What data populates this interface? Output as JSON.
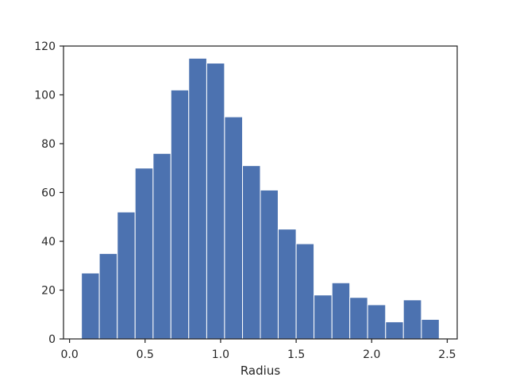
{
  "chart_data": {
    "type": "bar",
    "subtype": "histogram",
    "title": "",
    "xlabel": "Radius",
    "ylabel": "",
    "bin_edges": [
      0.079,
      0.197,
      0.316,
      0.434,
      0.553,
      0.671,
      0.789,
      0.908,
      1.026,
      1.145,
      1.263,
      1.381,
      1.5,
      1.618,
      1.737,
      1.855,
      1.973,
      2.092,
      2.21,
      2.329,
      2.447
    ],
    "values": [
      27,
      35,
      52,
      70,
      76,
      102,
      115,
      113,
      91,
      71,
      61,
      45,
      39,
      18,
      23,
      17,
      14,
      7,
      16,
      8
    ],
    "xlim": [
      -0.04,
      2.566
    ],
    "ylim": [
      0,
      120
    ],
    "xticks": [
      0.0,
      0.5,
      1.0,
      1.5,
      2.0,
      2.5
    ],
    "xtick_labels": [
      "0.0",
      "0.5",
      "1.0",
      "1.5",
      "2.0",
      "2.5"
    ],
    "yticks": [
      0,
      20,
      40,
      60,
      80,
      100,
      120
    ],
    "ytick_labels": [
      "0",
      "20",
      "40",
      "60",
      "80",
      "100",
      "120"
    ],
    "grid": false,
    "legend": "none",
    "bar_color": "#4c72b0",
    "bar_edge_color": "#ffffff",
    "axis_color": "#262626"
  }
}
